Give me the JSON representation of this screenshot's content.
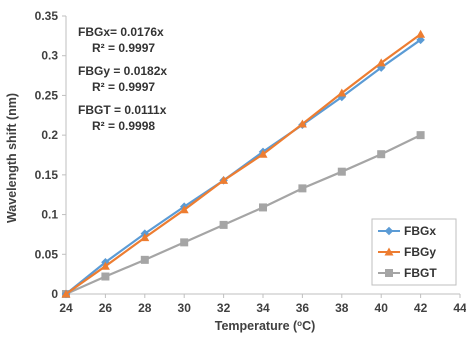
{
  "chart_data": {
    "type": "line",
    "xlabel": "Temperature (",
    "xlabel_sup": "o",
    "xlabel_suffix": "C)",
    "ylabel": "Wavelength shift (nm)",
    "xlim": [
      24,
      44
    ],
    "ylim": [
      0,
      0.35
    ],
    "x_ticks": [
      "24",
      "26",
      "28",
      "30",
      "32",
      "34",
      "36",
      "38",
      "40",
      "42",
      "44"
    ],
    "y_ticks": [
      "0",
      "0.05",
      "0.1",
      "0.15",
      "0.2",
      "0.25",
      "0.3",
      "0.35"
    ],
    "x": [
      24,
      26,
      28,
      30,
      32,
      34,
      36,
      38,
      40,
      42
    ],
    "series": [
      {
        "name": "FBGx",
        "color": "#5b9bd5",
        "marker": "diamond",
        "values": [
          0,
          0.04,
          0.076,
          0.11,
          0.143,
          0.179,
          0.213,
          0.248,
          0.285,
          0.32
        ]
      },
      {
        "name": "FBGy",
        "color": "#ed7d31",
        "marker": "triangle",
        "values": [
          0,
          0.035,
          0.071,
          0.106,
          0.143,
          0.176,
          0.214,
          0.253,
          0.291,
          0.327
        ]
      },
      {
        "name": "FBGT",
        "color": "#a5a5a5",
        "marker": "square",
        "values": [
          0,
          0.022,
          0.043,
          0.065,
          0.087,
          0.109,
          0.133,
          0.154,
          0.176,
          0.2
        ]
      }
    ],
    "annotations": [
      {
        "series": "FBGx",
        "equation": "FBGx= 0.0176x",
        "r2": "R² = 0.9997"
      },
      {
        "series": "FBGy",
        "equation": "FBGy = 0.0182x",
        "r2": "R² = 0.9997"
      },
      {
        "series": "FBGT",
        "equation": "FBGT = 0.0111x",
        "r2": "R² = 0.9998"
      }
    ],
    "legend_position": "bottom-right",
    "grid": false
  }
}
